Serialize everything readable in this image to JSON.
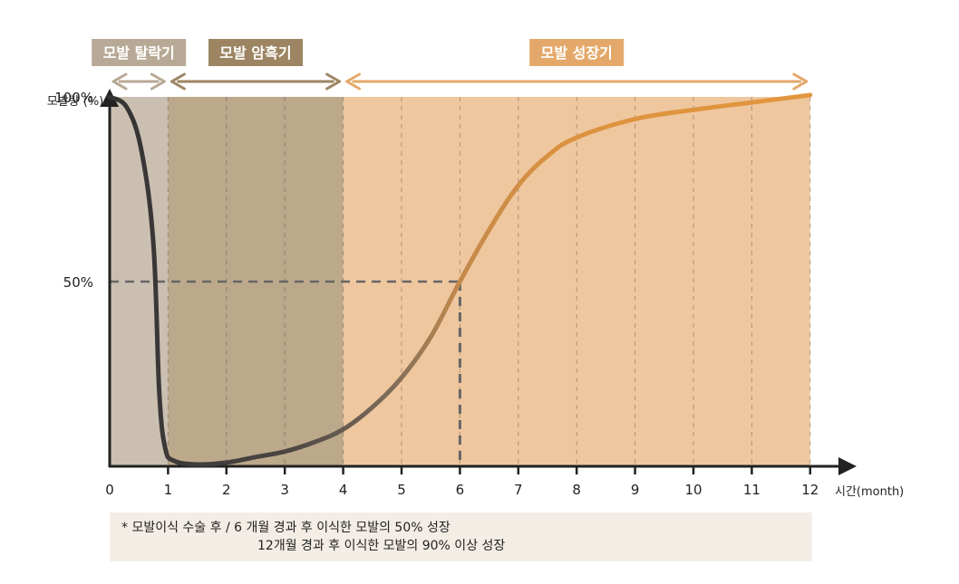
{
  "chart_data": {
    "type": "line",
    "ylabel": "모발량 (%)",
    "xlabel": "시간(month)",
    "y_ticks": [
      "50%",
      "100%"
    ],
    "x_ticks": [
      "0",
      "1",
      "2",
      "3",
      "4",
      "5",
      "6",
      "7",
      "8",
      "9",
      "10",
      "11",
      "12"
    ],
    "xlim": [
      0,
      12
    ],
    "ylim": [
      0,
      100
    ],
    "phases": [
      {
        "label": "모발 탈락기",
        "start": 0,
        "end": 1,
        "color": "#b8a996",
        "band_color": "#cbbfb1"
      },
      {
        "label": "모발 암흑기",
        "start": 1,
        "end": 4,
        "color": "#9d8563",
        "band_color": "#bca98b"
      },
      {
        "label": "모발 성장기",
        "start": 4,
        "end": 12,
        "color": "#e4a96a",
        "band_color": "#efc79f"
      }
    ],
    "series": [
      {
        "points": [
          [
            0,
            100
          ],
          [
            0.3,
            97
          ],
          [
            0.55,
            85
          ],
          [
            0.75,
            60
          ],
          [
            0.85,
            20
          ],
          [
            0.95,
            5
          ],
          [
            1.1,
            1.5
          ],
          [
            1.5,
            0.5
          ],
          [
            2,
            1
          ],
          [
            2.5,
            2.5
          ],
          [
            3,
            4
          ],
          [
            3.5,
            6.5
          ],
          [
            4,
            10
          ],
          [
            4.5,
            16
          ],
          [
            5,
            24
          ],
          [
            5.5,
            35
          ],
          [
            6,
            50
          ],
          [
            6.5,
            64
          ],
          [
            7,
            76
          ],
          [
            7.5,
            84
          ],
          [
            8,
            89
          ],
          [
            9,
            94
          ],
          [
            10,
            96.5
          ],
          [
            11,
            98.5
          ],
          [
            12,
            100.5
          ]
        ]
      }
    ],
    "reference": {
      "x": 6,
      "y": 50,
      "style": "dashed"
    }
  },
  "footnote": {
    "line1": "* 모발이식 수술 후 / 6  개월 경과 후 이식한 모발의 50% 성장",
    "line2": "12개월 경과 후 이식한 모발의 90% 이상 성장"
  }
}
